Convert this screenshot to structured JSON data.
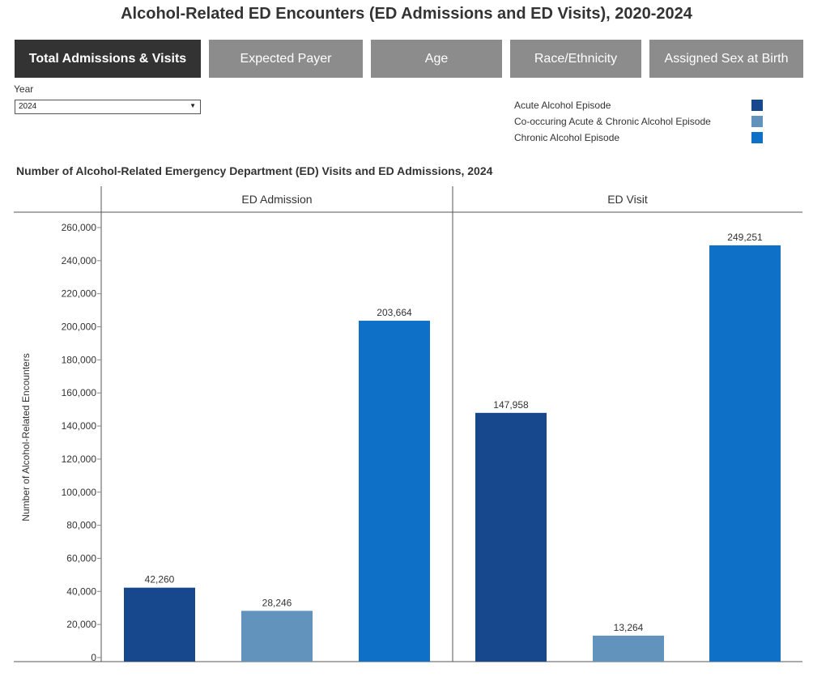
{
  "page": {
    "title": "Alcohol-Related ED Encounters (ED Admissions and ED Visits), 2020-2024"
  },
  "tabs": [
    {
      "label": "Total Admissions & Visits",
      "active": true
    },
    {
      "label": "Expected Payer",
      "active": false
    },
    {
      "label": "Age",
      "active": false
    },
    {
      "label": "Race/Ethnicity",
      "active": false
    },
    {
      "label": "Assigned Sex at Birth",
      "active": false
    }
  ],
  "filter": {
    "label": "Year",
    "value": "2024"
  },
  "legend": [
    {
      "label": "Acute Alcohol Episode",
      "color": "#17478c"
    },
    {
      "label": "Co-occuring Acute & Chronic Alcohol Episode",
      "color": "#6193bd"
    },
    {
      "label": "Chronic Alcohol Episode",
      "color": "#0f70c8"
    }
  ],
  "chart_data": {
    "type": "bar",
    "title": "Number of Alcohol-Related Emergency Department (ED) Visits and ED Admissions,  2024",
    "ylabel": "Number of Alcohol-Related Encounters",
    "ylim": [
      0,
      260000
    ],
    "yticks": [
      0,
      20000,
      40000,
      60000,
      80000,
      100000,
      120000,
      140000,
      160000,
      180000,
      200000,
      220000,
      240000,
      260000
    ],
    "ytick_labels": [
      "0",
      "20,000",
      "40,000",
      "60,000",
      "80,000",
      "100,000",
      "120,000",
      "140,000",
      "160,000",
      "180,000",
      "200,000",
      "220,000",
      "240,000",
      "260,000"
    ],
    "panels": [
      {
        "name": "ED Admission",
        "values": [
          42260,
          28246,
          203664
        ],
        "labels": [
          "42,260",
          "28,246",
          "203,664"
        ]
      },
      {
        "name": "ED Visit",
        "values": [
          147958,
          13264,
          249251
        ],
        "labels": [
          "147,958",
          "13,264",
          "249,251"
        ]
      }
    ],
    "series_names": [
      "Acute Alcohol Episode",
      "Co-occuring Acute & Chronic Alcohol Episode",
      "Chronic Alcohol Episode"
    ],
    "colors": [
      "#17478c",
      "#6193bd",
      "#0f70c8"
    ],
    "grid": false
  }
}
